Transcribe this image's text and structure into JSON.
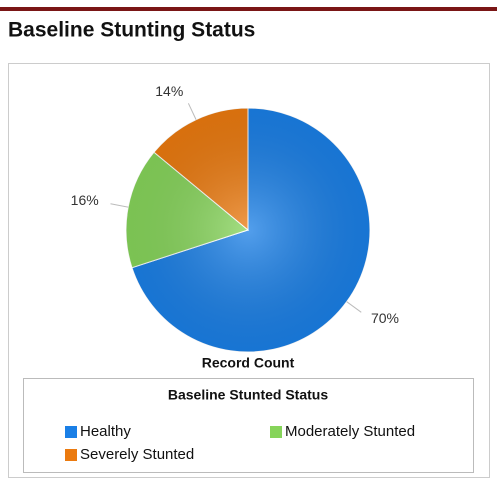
{
  "header": {
    "title": "Baseline Stunting Status"
  },
  "chart_data": {
    "type": "pie",
    "title": "Record Count",
    "legend_title": "Baseline Stunted Status",
    "categories": [
      "Healthy",
      "Moderately Stunted",
      "Severely Stunted"
    ],
    "values": [
      70,
      16,
      14
    ],
    "value_labels": [
      "70%",
      "16%",
      "14%"
    ],
    "colors": [
      "#1a7fe6",
      "#86d45a",
      "#eb7a0f"
    ]
  }
}
